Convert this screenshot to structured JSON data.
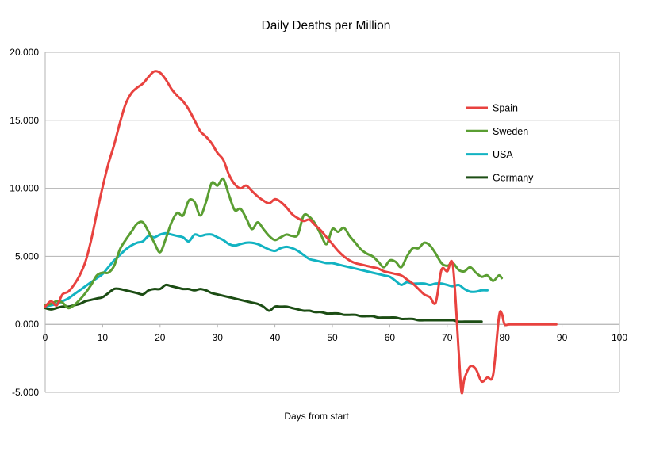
{
  "chart_data": {
    "type": "line",
    "title": "Daily Deaths per Million",
    "xlabel": "Days from start",
    "ylabel": "",
    "xlim": [
      0,
      100
    ],
    "ylim": [
      -5,
      20
    ],
    "x_ticks": [
      "0",
      "10",
      "20",
      "30",
      "40",
      "50",
      "60",
      "70",
      "80",
      "90",
      "100"
    ],
    "y_ticks": [
      "-5.000",
      "0.000",
      "5.000",
      "10.000",
      "15.000",
      "20.000"
    ],
    "grid": "horizontal",
    "legend_position": "right",
    "series": [
      {
        "name": "Spain",
        "color": "#e8423f",
        "points": [
          [
            0,
            1.3
          ],
          [
            1,
            1.7
          ],
          [
            2,
            1.4
          ],
          [
            3,
            2.2
          ],
          [
            4,
            2.4
          ],
          [
            5,
            2.9
          ],
          [
            6,
            3.6
          ],
          [
            7,
            4.6
          ],
          [
            8,
            6.2
          ],
          [
            9,
            8.2
          ],
          [
            10,
            10.1
          ],
          [
            11,
            11.8
          ],
          [
            12,
            13.2
          ],
          [
            13,
            14.8
          ],
          [
            14,
            16.2
          ],
          [
            15,
            17.0
          ],
          [
            16,
            17.4
          ],
          [
            17,
            17.7
          ],
          [
            18,
            18.2
          ],
          [
            19,
            18.6
          ],
          [
            20,
            18.5
          ],
          [
            21,
            18.0
          ],
          [
            22,
            17.3
          ],
          [
            23,
            16.8
          ],
          [
            24,
            16.4
          ],
          [
            25,
            15.8
          ],
          [
            26,
            15.0
          ],
          [
            27,
            14.2
          ],
          [
            28,
            13.8
          ],
          [
            29,
            13.3
          ],
          [
            30,
            12.6
          ],
          [
            31,
            12.1
          ],
          [
            32,
            11.0
          ],
          [
            33,
            10.3
          ],
          [
            34,
            10.0
          ],
          [
            35,
            10.2
          ],
          [
            36,
            9.8
          ],
          [
            37,
            9.4
          ],
          [
            38,
            9.1
          ],
          [
            39,
            8.9
          ],
          [
            40,
            9.2
          ],
          [
            41,
            9.0
          ],
          [
            42,
            8.6
          ],
          [
            43,
            8.1
          ],
          [
            44,
            7.8
          ],
          [
            45,
            7.6
          ],
          [
            46,
            7.7
          ],
          [
            47,
            7.3
          ],
          [
            48,
            6.9
          ],
          [
            49,
            6.4
          ],
          [
            50,
            5.9
          ],
          [
            51,
            5.4
          ],
          [
            52,
            5.0
          ],
          [
            53,
            4.7
          ],
          [
            54,
            4.5
          ],
          [
            55,
            4.4
          ],
          [
            56,
            4.3
          ],
          [
            57,
            4.2
          ],
          [
            58,
            4.1
          ],
          [
            59,
            3.9
          ],
          [
            60,
            3.8
          ],
          [
            61,
            3.7
          ],
          [
            62,
            3.6
          ],
          [
            63,
            3.3
          ],
          [
            64,
            3.0
          ],
          [
            65,
            2.6
          ],
          [
            66,
            2.2
          ],
          [
            67,
            2.0
          ],
          [
            68,
            1.6
          ],
          [
            69,
            4.0
          ],
          [
            70,
            3.9
          ],
          [
            71,
            4.3
          ],
          [
            72,
            -2.0
          ],
          [
            72.5,
            -5.0
          ],
          [
            73,
            -4.0
          ],
          [
            74,
            -3.1
          ],
          [
            75,
            -3.3
          ],
          [
            76,
            -4.2
          ],
          [
            77,
            -3.9
          ],
          [
            78,
            -3.7
          ],
          [
            79,
            0.5
          ],
          [
            79.5,
            0.8
          ],
          [
            80,
            0.0
          ],
          [
            81,
            0.0
          ],
          [
            85,
            0.0
          ],
          [
            89,
            0.0
          ]
        ]
      },
      {
        "name": "Sweden",
        "color": "#5a9e32",
        "points": [
          [
            0,
            1.4
          ],
          [
            1,
            1.5
          ],
          [
            2,
            1.7
          ],
          [
            3,
            1.6
          ],
          [
            4,
            1.2
          ],
          [
            5,
            1.4
          ],
          [
            6,
            1.8
          ],
          [
            7,
            2.3
          ],
          [
            8,
            2.9
          ],
          [
            9,
            3.6
          ],
          [
            10,
            3.8
          ],
          [
            11,
            3.8
          ],
          [
            12,
            4.3
          ],
          [
            13,
            5.5
          ],
          [
            14,
            6.2
          ],
          [
            15,
            6.8
          ],
          [
            16,
            7.4
          ],
          [
            17,
            7.5
          ],
          [
            18,
            6.8
          ],
          [
            19,
            6.0
          ],
          [
            20,
            5.3
          ],
          [
            21,
            6.3
          ],
          [
            22,
            7.5
          ],
          [
            23,
            8.2
          ],
          [
            24,
            8.0
          ],
          [
            25,
            9.1
          ],
          [
            26,
            9.0
          ],
          [
            27,
            8.0
          ],
          [
            28,
            9.0
          ],
          [
            29,
            10.4
          ],
          [
            30,
            10.2
          ],
          [
            31,
            10.7
          ],
          [
            32,
            9.5
          ],
          [
            33,
            8.4
          ],
          [
            34,
            8.5
          ],
          [
            35,
            7.8
          ],
          [
            36,
            7.0
          ],
          [
            37,
            7.5
          ],
          [
            38,
            7.0
          ],
          [
            39,
            6.5
          ],
          [
            40,
            6.2
          ],
          [
            41,
            6.4
          ],
          [
            42,
            6.6
          ],
          [
            43,
            6.5
          ],
          [
            44,
            6.6
          ],
          [
            45,
            8.0
          ],
          [
            46,
            7.9
          ],
          [
            47,
            7.4
          ],
          [
            48,
            6.6
          ],
          [
            49,
            5.9
          ],
          [
            50,
            7.0
          ],
          [
            51,
            6.8
          ],
          [
            52,
            7.1
          ],
          [
            53,
            6.5
          ],
          [
            54,
            6.0
          ],
          [
            55,
            5.5
          ],
          [
            56,
            5.2
          ],
          [
            57,
            5.0
          ],
          [
            58,
            4.6
          ],
          [
            59,
            4.2
          ],
          [
            60,
            4.7
          ],
          [
            61,
            4.6
          ],
          [
            62,
            4.2
          ],
          [
            63,
            5.0
          ],
          [
            64,
            5.6
          ],
          [
            65,
            5.6
          ],
          [
            66,
            6.0
          ],
          [
            67,
            5.8
          ],
          [
            68,
            5.2
          ],
          [
            69,
            4.5
          ],
          [
            70,
            4.3
          ],
          [
            71,
            4.5
          ],
          [
            72,
            4.0
          ],
          [
            73,
            3.9
          ],
          [
            74,
            4.2
          ],
          [
            75,
            3.8
          ],
          [
            76,
            3.5
          ],
          [
            77,
            3.6
          ],
          [
            78,
            3.2
          ],
          [
            79,
            3.6
          ],
          [
            79.5,
            3.4
          ]
        ]
      },
      {
        "name": "USA",
        "color": "#12b3c2",
        "points": [
          [
            0,
            1.3
          ],
          [
            1,
            1.4
          ],
          [
            2,
            1.5
          ],
          [
            3,
            1.7
          ],
          [
            4,
            1.9
          ],
          [
            5,
            2.2
          ],
          [
            6,
            2.5
          ],
          [
            7,
            2.8
          ],
          [
            8,
            3.1
          ],
          [
            9,
            3.4
          ],
          [
            10,
            3.7
          ],
          [
            11,
            4.2
          ],
          [
            12,
            4.7
          ],
          [
            13,
            5.1
          ],
          [
            14,
            5.5
          ],
          [
            15,
            5.8
          ],
          [
            16,
            6.0
          ],
          [
            17,
            6.1
          ],
          [
            18,
            6.5
          ],
          [
            19,
            6.4
          ],
          [
            20,
            6.6
          ],
          [
            21,
            6.7
          ],
          [
            22,
            6.6
          ],
          [
            23,
            6.5
          ],
          [
            24,
            6.4
          ],
          [
            25,
            6.1
          ],
          [
            26,
            6.6
          ],
          [
            27,
            6.5
          ],
          [
            28,
            6.6
          ],
          [
            29,
            6.6
          ],
          [
            30,
            6.4
          ],
          [
            31,
            6.2
          ],
          [
            32,
            5.9
          ],
          [
            33,
            5.8
          ],
          [
            34,
            5.9
          ],
          [
            35,
            6.0
          ],
          [
            36,
            6.0
          ],
          [
            37,
            5.9
          ],
          [
            38,
            5.7
          ],
          [
            39,
            5.5
          ],
          [
            40,
            5.4
          ],
          [
            41,
            5.6
          ],
          [
            42,
            5.7
          ],
          [
            43,
            5.6
          ],
          [
            44,
            5.4
          ],
          [
            45,
            5.1
          ],
          [
            46,
            4.8
          ],
          [
            47,
            4.7
          ],
          [
            48,
            4.6
          ],
          [
            49,
            4.5
          ],
          [
            50,
            4.5
          ],
          [
            51,
            4.4
          ],
          [
            52,
            4.3
          ],
          [
            53,
            4.2
          ],
          [
            54,
            4.1
          ],
          [
            55,
            4.0
          ],
          [
            56,
            3.9
          ],
          [
            57,
            3.8
          ],
          [
            58,
            3.7
          ],
          [
            59,
            3.6
          ],
          [
            60,
            3.5
          ],
          [
            61,
            3.2
          ],
          [
            62,
            2.9
          ],
          [
            63,
            3.1
          ],
          [
            64,
            3.0
          ],
          [
            65,
            3.0
          ],
          [
            66,
            3.0
          ],
          [
            67,
            2.9
          ],
          [
            68,
            3.0
          ],
          [
            69,
            3.0
          ],
          [
            70,
            2.9
          ],
          [
            71,
            2.8
          ],
          [
            72,
            2.9
          ],
          [
            73,
            2.6
          ],
          [
            74,
            2.4
          ],
          [
            75,
            2.4
          ],
          [
            76,
            2.5
          ],
          [
            77,
            2.5
          ]
        ]
      },
      {
        "name": "Germany",
        "color": "#1c4d14",
        "points": [
          [
            0,
            1.2
          ],
          [
            1,
            1.1
          ],
          [
            2,
            1.2
          ],
          [
            3,
            1.3
          ],
          [
            4,
            1.3
          ],
          [
            5,
            1.4
          ],
          [
            6,
            1.5
          ],
          [
            7,
            1.7
          ],
          [
            8,
            1.8
          ],
          [
            9,
            1.9
          ],
          [
            10,
            2.0
          ],
          [
            11,
            2.3
          ],
          [
            12,
            2.6
          ],
          [
            13,
            2.6
          ],
          [
            14,
            2.5
          ],
          [
            15,
            2.4
          ],
          [
            16,
            2.3
          ],
          [
            17,
            2.2
          ],
          [
            18,
            2.5
          ],
          [
            19,
            2.6
          ],
          [
            20,
            2.6
          ],
          [
            21,
            2.9
          ],
          [
            22,
            2.8
          ],
          [
            23,
            2.7
          ],
          [
            24,
            2.6
          ],
          [
            25,
            2.6
          ],
          [
            26,
            2.5
          ],
          [
            27,
            2.6
          ],
          [
            28,
            2.5
          ],
          [
            29,
            2.3
          ],
          [
            30,
            2.2
          ],
          [
            31,
            2.1
          ],
          [
            32,
            2.0
          ],
          [
            33,
            1.9
          ],
          [
            34,
            1.8
          ],
          [
            35,
            1.7
          ],
          [
            36,
            1.6
          ],
          [
            37,
            1.5
          ],
          [
            38,
            1.3
          ],
          [
            39,
            1.0
          ],
          [
            40,
            1.3
          ],
          [
            41,
            1.3
          ],
          [
            42,
            1.3
          ],
          [
            43,
            1.2
          ],
          [
            44,
            1.1
          ],
          [
            45,
            1.0
          ],
          [
            46,
            1.0
          ],
          [
            47,
            0.9
          ],
          [
            48,
            0.9
          ],
          [
            49,
            0.8
          ],
          [
            50,
            0.8
          ],
          [
            51,
            0.8
          ],
          [
            52,
            0.7
          ],
          [
            53,
            0.7
          ],
          [
            54,
            0.7
          ],
          [
            55,
            0.6
          ],
          [
            56,
            0.6
          ],
          [
            57,
            0.6
          ],
          [
            58,
            0.5
          ],
          [
            59,
            0.5
          ],
          [
            60,
            0.5
          ],
          [
            61,
            0.5
          ],
          [
            62,
            0.4
          ],
          [
            63,
            0.4
          ],
          [
            64,
            0.4
          ],
          [
            65,
            0.3
          ],
          [
            66,
            0.3
          ],
          [
            67,
            0.3
          ],
          [
            68,
            0.3
          ],
          [
            69,
            0.3
          ],
          [
            70,
            0.3
          ],
          [
            71,
            0.3
          ],
          [
            72,
            0.2
          ],
          [
            73,
            0.2
          ],
          [
            74,
            0.2
          ],
          [
            75,
            0.2
          ],
          [
            76,
            0.2
          ]
        ]
      }
    ]
  }
}
